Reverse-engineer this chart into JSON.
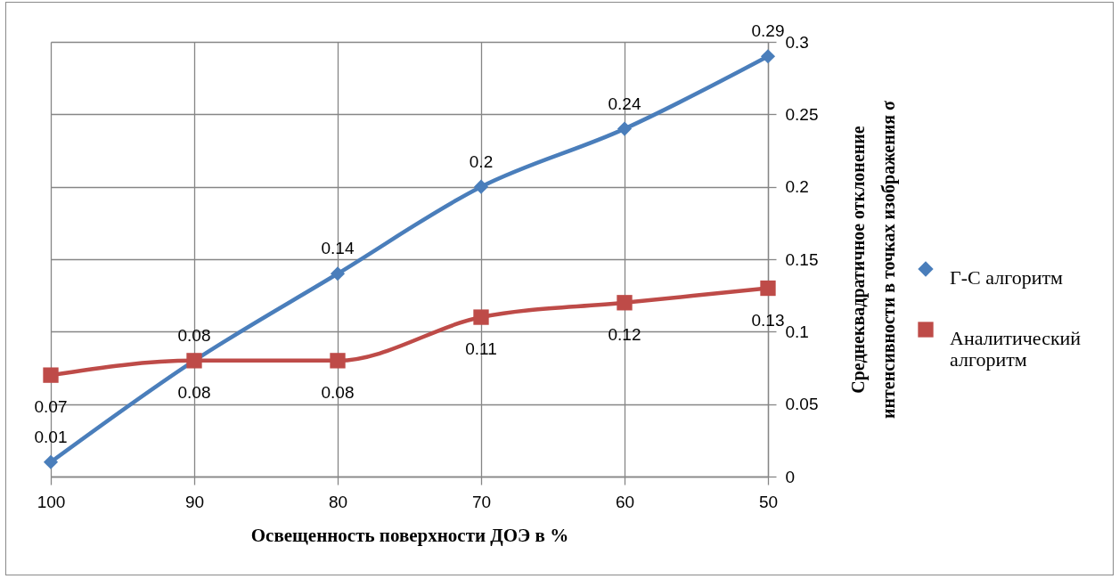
{
  "chart_data": {
    "type": "line",
    "xlabel": "Освещенность поверхности ДОЭ в %",
    "ylabel": "Среднеквадратичное отклонение интенсивности в точках изображения σ",
    "categories": [
      "100",
      "90",
      "80",
      "70",
      "60",
      "50"
    ],
    "series": [
      {
        "name": "Г-С алгоритм",
        "color": "#4a7ebb",
        "marker": "diamond",
        "values": [
          0.01,
          0.08,
          0.14,
          0.2,
          0.24,
          0.29
        ]
      },
      {
        "name": "Аналитический алгоритм",
        "color": "#be4b48",
        "marker": "square",
        "values": [
          0.07,
          0.08,
          0.08,
          0.11,
          0.12,
          0.13
        ]
      }
    ],
    "ylim": [
      0,
      0.3
    ],
    "yticks": [
      0,
      0.05,
      0.1,
      0.15,
      0.2,
      0.25,
      0.3
    ],
    "grid": true,
    "legend": "right",
    "data_labels": true,
    "line_style": "solid"
  }
}
